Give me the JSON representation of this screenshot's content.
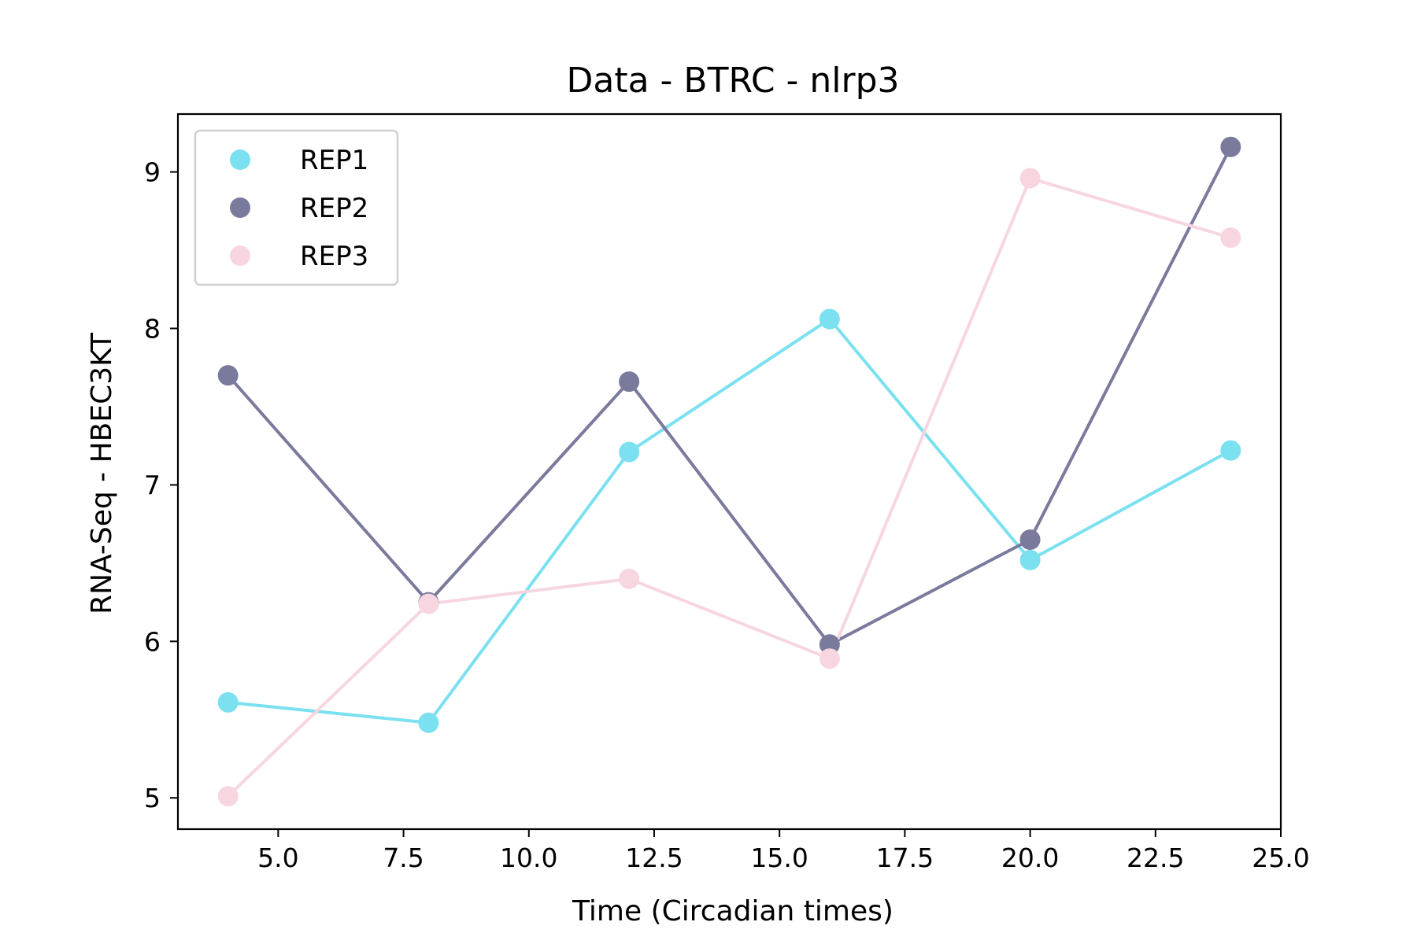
{
  "chart_data": {
    "type": "line",
    "title": "Data - BTRC - nlrp3",
    "xlabel": "Time (Circadian times)",
    "ylabel": "RNA-Seq - HBEC3KT",
    "xlim": [
      3.0,
      25.0
    ],
    "ylim": [
      4.8,
      9.37
    ],
    "x_ticks": [
      5.0,
      7.5,
      10.0,
      12.5,
      15.0,
      17.5,
      20.0,
      22.5,
      25.0
    ],
    "x_tick_labels": [
      "5.0",
      "7.5",
      "10.0",
      "12.5",
      "15.0",
      "17.5",
      "20.0",
      "22.5",
      "25.0"
    ],
    "y_ticks": [
      5,
      6,
      7,
      8,
      9
    ],
    "y_tick_labels": [
      "5",
      "6",
      "7",
      "8",
      "9"
    ],
    "grid": false,
    "legend_position": "top-left",
    "x": [
      4,
      8,
      12,
      16,
      20,
      24
    ],
    "series": [
      {
        "name": "REP1",
        "color": "#7be0ef",
        "values": [
          5.61,
          5.48,
          7.21,
          8.06,
          6.52,
          7.22
        ]
      },
      {
        "name": "REP2",
        "color": "#7a7a9c",
        "values": [
          7.7,
          6.25,
          7.66,
          5.98,
          6.65,
          9.16
        ]
      },
      {
        "name": "REP3",
        "color": "#f7d6e0",
        "values": [
          5.01,
          6.24,
          6.4,
          5.89,
          8.96,
          8.58
        ]
      }
    ]
  }
}
